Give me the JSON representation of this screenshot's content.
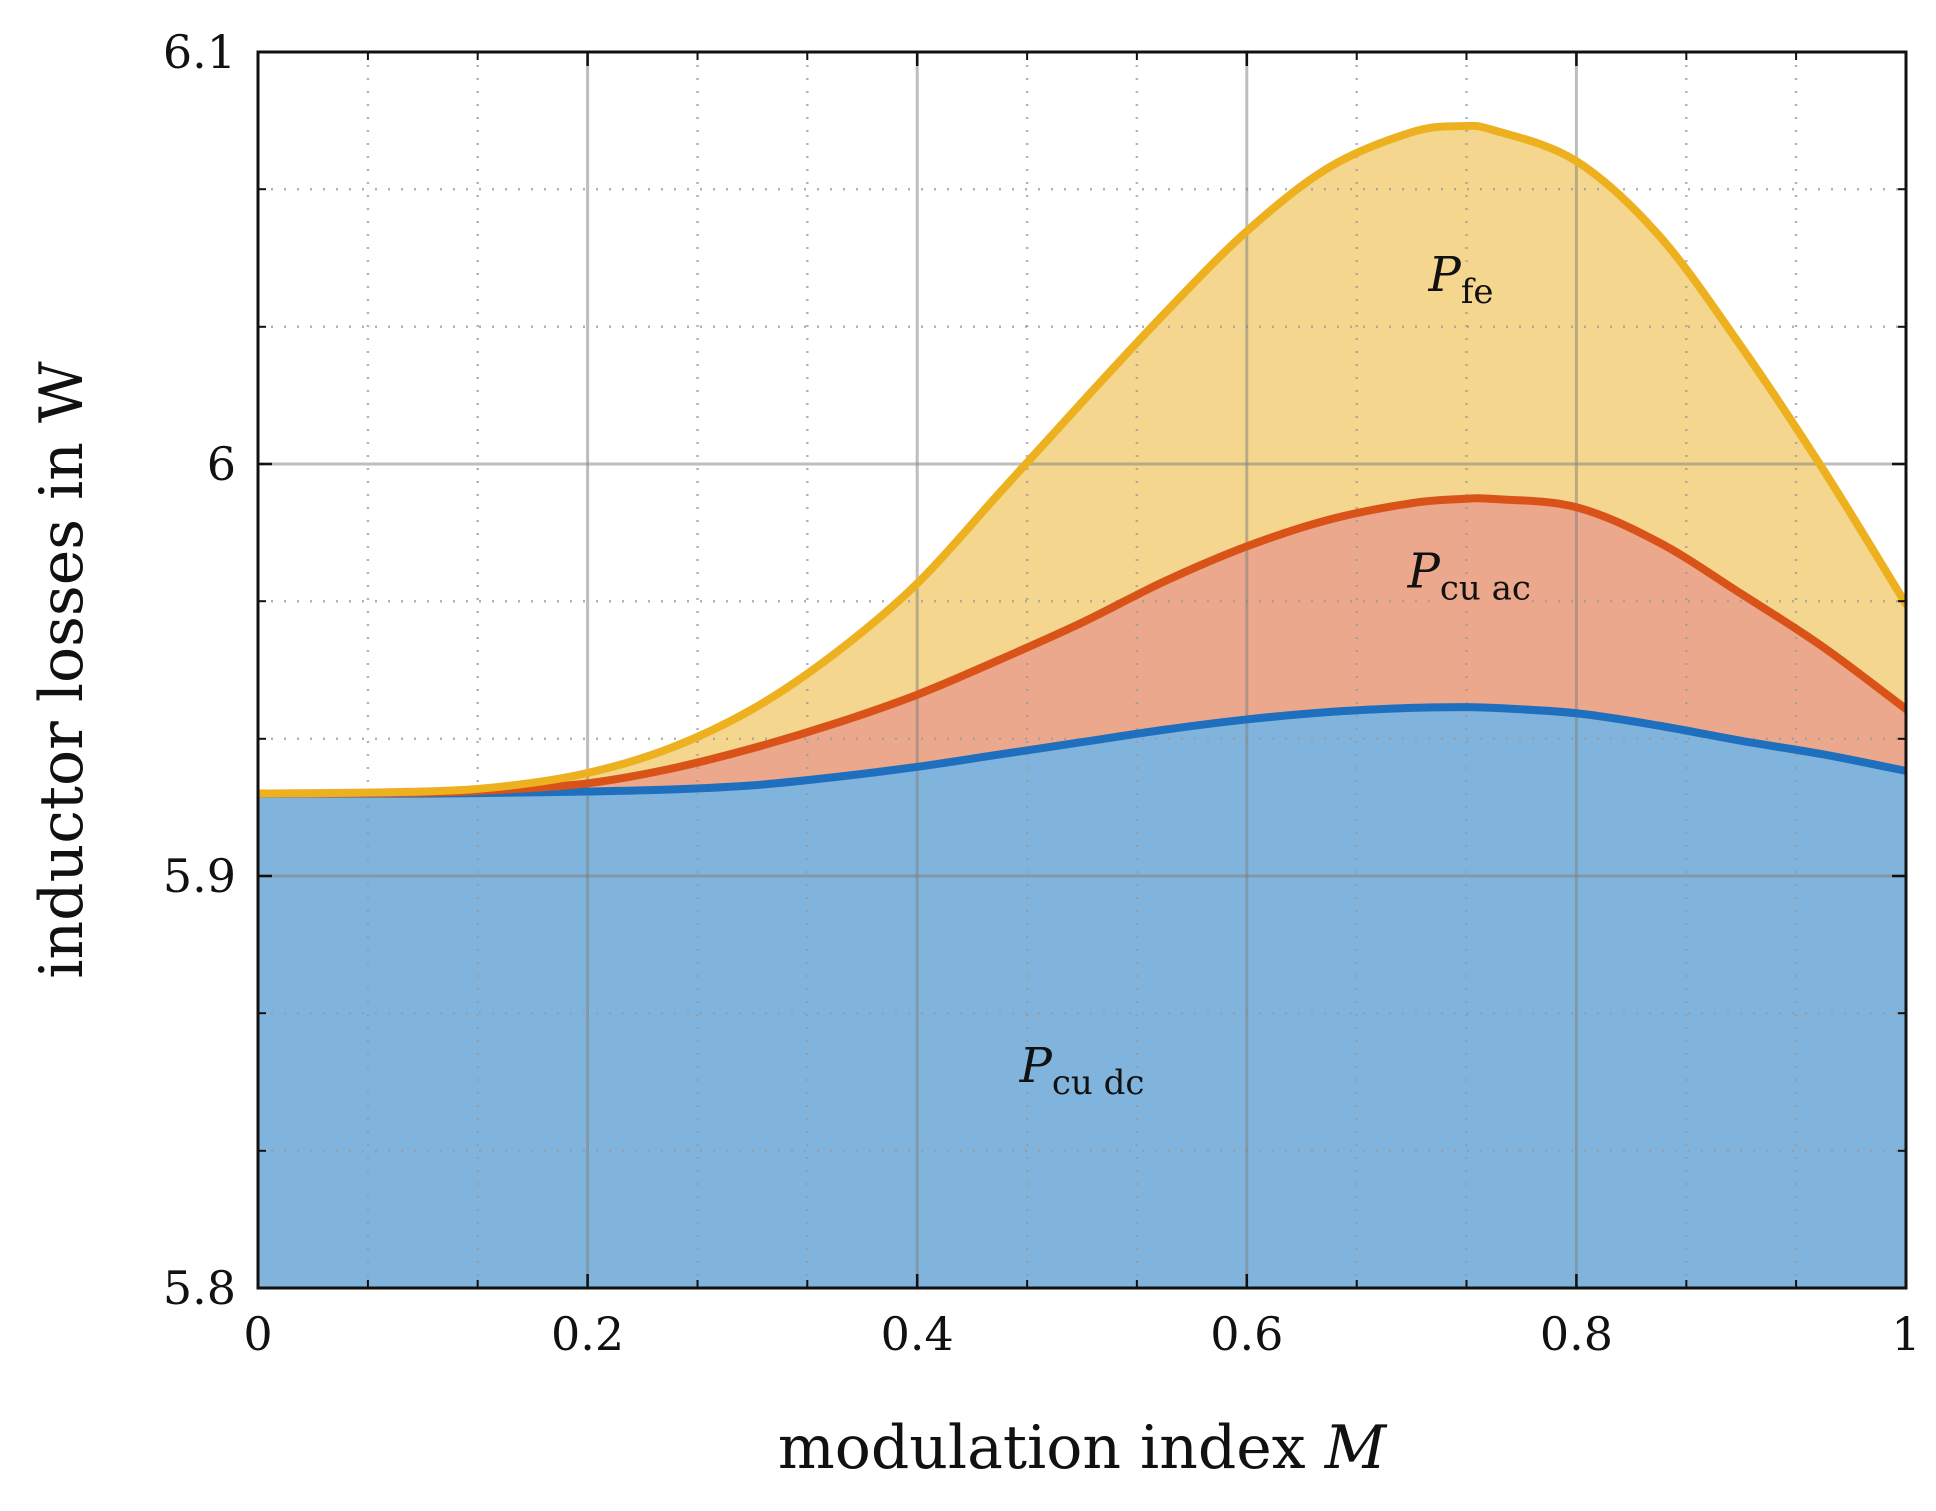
{
  "chart_data": {
    "type": "area",
    "stacked": true,
    "xlabel": "modulation index",
    "xlabel_var": "M",
    "ylabel": "inductor losses in W",
    "xlim": [
      0,
      1
    ],
    "ylim": [
      5.8,
      6.1
    ],
    "xticks": [
      0,
      0.2,
      0.4,
      0.6,
      0.8,
      1
    ],
    "xtick_labels": [
      "0",
      "0.2",
      "0.4",
      "0.6",
      "0.8",
      "1"
    ],
    "yticks": [
      5.8,
      5.9,
      6.0,
      6.1
    ],
    "ytick_labels": [
      "5.8",
      "5.9",
      "6",
      "6.1"
    ],
    "x_minor_ticks": [
      0.0667,
      0.1333,
      0.2667,
      0.3333,
      0.4667,
      0.5333,
      0.6667,
      0.7333,
      0.8667,
      0.9333
    ],
    "y_minor_ticks": [
      5.8333,
      5.8667,
      5.9333,
      5.9667,
      6.0333,
      6.0667
    ],
    "grid": true,
    "x": [
      0,
      0.1,
      0.15,
      0.2,
      0.25,
      0.3,
      0.35,
      0.4,
      0.45,
      0.5,
      0.55,
      0.6,
      0.65,
      0.7,
      0.73,
      0.75,
      0.8,
      0.85,
      0.9,
      0.95,
      1.0
    ],
    "series": [
      {
        "name": "P_cu dc",
        "label_main": "P",
        "label_sub": "cu dc",
        "line_color": "#1f6fbf",
        "fill_color": "#80b4dc",
        "values": [
          5.92,
          5.92,
          5.9202,
          5.9205,
          5.921,
          5.922,
          5.924,
          5.9265,
          5.9295,
          5.9325,
          5.9355,
          5.938,
          5.9398,
          5.9408,
          5.941,
          5.9408,
          5.9395,
          5.9365,
          5.9328,
          5.9295,
          5.9255
        ],
        "label_pos": [
          0.5,
          5.85
        ]
      },
      {
        "name": "P_cu ac",
        "label_main": "P",
        "label_sub": "cu ac",
        "line_color": "#d95319",
        "fill_color": "#eba88c",
        "values": [
          5.92,
          5.9202,
          5.921,
          5.9225,
          5.926,
          5.931,
          5.937,
          5.944,
          5.9525,
          5.9615,
          5.9715,
          5.98,
          5.9865,
          5.9905,
          5.9915,
          5.9915,
          5.9895,
          5.981,
          5.9685,
          5.9555,
          5.9405
        ],
        "label_pos": [
          0.735,
          5.97
        ]
      },
      {
        "name": "P_fe",
        "label_main": "P",
        "label_sub": "fe",
        "line_color": "#edb120",
        "fill_color": "#f4d68e",
        "values": [
          5.92,
          5.9205,
          5.9218,
          5.925,
          5.931,
          5.9405,
          5.954,
          5.971,
          5.993,
          6.015,
          6.0365,
          6.0565,
          6.072,
          6.0805,
          6.082,
          6.081,
          6.0735,
          6.0555,
          6.0285,
          5.9985,
          5.966
        ],
        "label_pos": [
          0.73,
          6.042
        ]
      }
    ]
  }
}
